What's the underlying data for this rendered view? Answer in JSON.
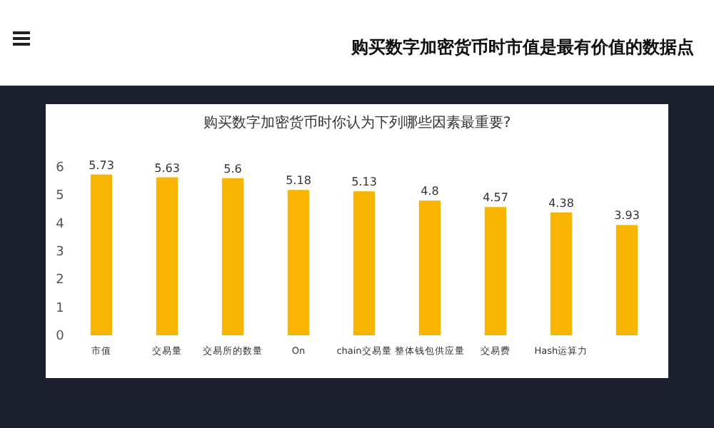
{
  "chart_data": {
    "type": "bar",
    "title": "购买数字加密货币时市值是最有价值的数据点",
    "subtitle": "购买数字加密货币时你认为下列哪些因素最重要?",
    "categories": [
      "市值",
      "交易量",
      "交易所的数量",
      "On",
      "chain交易量",
      "整体钱包供应量",
      "交易费",
      "Hash运算力",
      null
    ],
    "values": [
      5.73,
      5.63,
      5.6,
      5.18,
      5.13,
      4.8,
      4.57,
      4.38,
      3.93
    ],
    "color": "#f7b500",
    "ylim": [
      0,
      6
    ],
    "yticks": [
      0,
      1,
      2,
      3,
      4,
      5,
      6
    ],
    "data_labels": true
  }
}
